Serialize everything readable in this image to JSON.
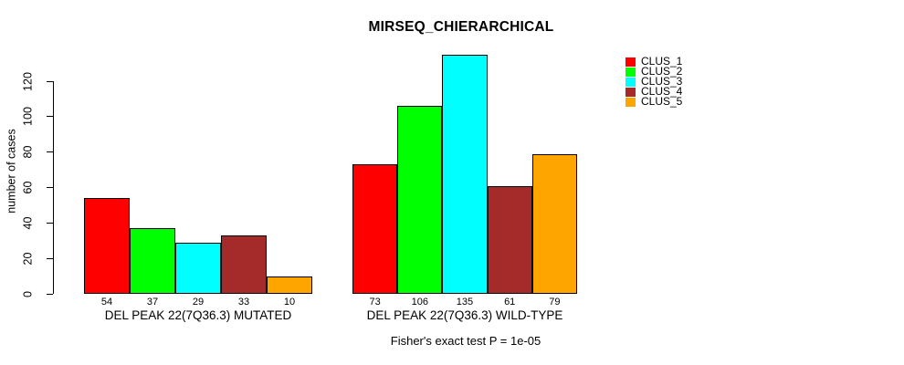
{
  "chart_data": {
    "type": "bar",
    "title": "MIRSEQ_CHIERARCHICAL",
    "ylabel": "number of cases",
    "xlabel": "",
    "ylim": [
      0,
      135
    ],
    "yticks": [
      0,
      20,
      40,
      60,
      80,
      100,
      120
    ],
    "grid": false,
    "legend_position": "right",
    "categories": [
      "DEL PEAK 22(7Q36.3) MUTATED",
      "DEL PEAK 22(7Q36.3) WILD-TYPE"
    ],
    "series": [
      {
        "name": "CLUS_1",
        "color": "#FF0000",
        "values": [
          54,
          73
        ]
      },
      {
        "name": "CLUS_2",
        "color": "#00FF00",
        "values": [
          37,
          106
        ]
      },
      {
        "name": "CLUS_3",
        "color": "#00FFFF",
        "values": [
          29,
          135
        ]
      },
      {
        "name": "CLUS_4",
        "color": "#A52A2A",
        "values": [
          33,
          61
        ]
      },
      {
        "name": "CLUS_5",
        "color": "#FFA500",
        "values": [
          10,
          79
        ]
      }
    ],
    "bar_value_labels": {
      "mutated": [
        54,
        37,
        29,
        33,
        10
      ],
      "wild_type": [
        73,
        106,
        135,
        61,
        79
      ]
    },
    "annotation": "Fisher's exact test P = 1e-05"
  }
}
